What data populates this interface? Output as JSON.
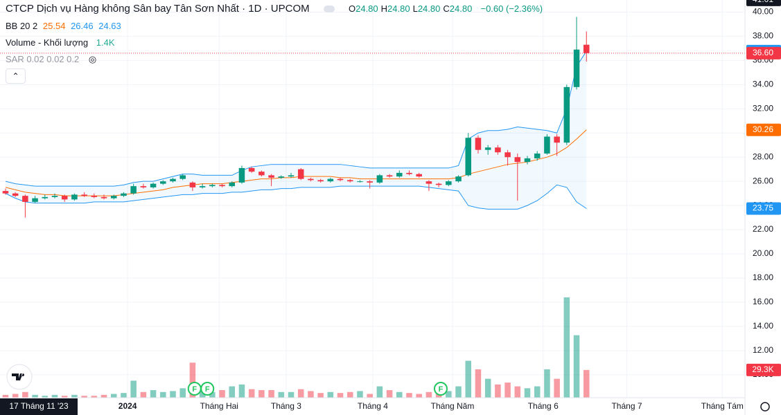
{
  "chart_data": {
    "type": "candlestick",
    "legend": {
      "title": "CTCP Dịch vụ Hàng không Sân bay Tân Sơn Nhất · 1D · UPCOM",
      "ohlc": [
        [
          "O",
          "24.80"
        ],
        [
          "H",
          "24.80"
        ],
        [
          "L",
          "24.80"
        ],
        [
          "C",
          "24.80"
        ]
      ],
      "change": "−0.60 (−2.36%)",
      "bb": {
        "name": "BB 20 2",
        "values": [
          "25.54",
          "26.46",
          "24.63"
        ]
      },
      "volume": {
        "name": "Volume - Khối lượng",
        "value": "1.4K"
      },
      "sar": "SAR 0.02 0.02 0.2"
    },
    "up_color": "#089981",
    "down_color": "#f23645",
    "candles": [
      [
        25.2,
        25.4,
        24.9,
        25.0
      ],
      [
        25.0,
        25.1,
        24.7,
        24.8
      ],
      [
        24.8,
        24.9,
        23.0,
        24.3
      ],
      [
        24.3,
        24.8,
        24.2,
        24.6
      ],
      [
        24.6,
        24.9,
        24.5,
        24.7
      ],
      [
        24.7,
        25.0,
        24.6,
        24.8
      ],
      [
        24.8,
        24.9,
        24.3,
        24.5
      ],
      [
        24.5,
        25.0,
        24.4,
        24.9
      ],
      [
        24.9,
        25.1,
        24.7,
        24.8
      ],
      [
        24.8,
        25.0,
        24.6,
        24.7
      ],
      [
        24.7,
        24.9,
        24.5,
        24.6
      ],
      [
        24.6,
        24.9,
        24.5,
        24.8
      ],
      [
        24.8,
        25.1,
        24.7,
        25.0
      ],
      [
        25.0,
        25.8,
        24.9,
        25.6
      ],
      [
        25.6,
        25.8,
        25.4,
        25.5
      ],
      [
        25.5,
        25.9,
        25.4,
        25.8
      ],
      [
        25.8,
        26.1,
        25.7,
        26.0
      ],
      [
        26.0,
        26.3,
        25.9,
        26.2
      ],
      [
        26.2,
        26.6,
        26.1,
        26.5
      ],
      [
        25.9,
        26.0,
        25.2,
        25.5
      ],
      [
        25.5,
        25.8,
        25.4,
        25.6
      ],
      [
        25.6,
        25.8,
        25.5,
        25.7
      ],
      [
        25.7,
        25.8,
        25.5,
        25.6
      ],
      [
        25.6,
        26.0,
        25.5,
        25.9
      ],
      [
        25.9,
        27.3,
        25.8,
        27.1
      ],
      [
        27.1,
        27.2,
        26.7,
        26.8
      ],
      [
        26.8,
        26.9,
        26.4,
        26.5
      ],
      [
        26.5,
        26.6,
        25.6,
        26.3
      ],
      [
        26.3,
        26.5,
        26.2,
        26.4
      ],
      [
        26.4,
        26.7,
        26.3,
        26.5
      ],
      [
        27.0,
        27.1,
        26.1,
        26.2
      ],
      [
        26.2,
        26.3,
        26.0,
        26.1
      ],
      [
        26.1,
        26.2,
        25.9,
        26.0
      ],
      [
        26.0,
        26.3,
        25.9,
        26.2
      ],
      [
        26.2,
        26.3,
        26.0,
        26.1
      ],
      [
        26.1,
        26.2,
        25.9,
        26.0
      ],
      [
        26.0,
        26.1,
        25.9,
        26.0
      ],
      [
        26.0,
        26.1,
        25.4,
        25.9
      ],
      [
        25.9,
        26.6,
        25.8,
        26.5
      ],
      [
        26.5,
        26.6,
        26.3,
        26.4
      ],
      [
        26.4,
        26.9,
        26.3,
        26.7
      ],
      [
        26.7,
        26.9,
        26.5,
        26.6
      ],
      [
        26.6,
        26.7,
        26.3,
        26.4
      ],
      [
        26.0,
        26.1,
        25.2,
        25.8
      ],
      [
        25.8,
        25.9,
        25.5,
        25.7
      ],
      [
        25.7,
        26.1,
        25.6,
        26.0
      ],
      [
        26.0,
        26.5,
        25.9,
        26.4
      ],
      [
        26.5,
        30.0,
        26.4,
        29.6
      ],
      [
        29.6,
        29.8,
        28.3,
        28.6
      ],
      [
        28.6,
        29.0,
        28.2,
        28.8
      ],
      [
        28.8,
        29.0,
        28.2,
        28.4
      ],
      [
        28.4,
        28.6,
        27.3,
        28.0
      ],
      [
        28.0,
        28.3,
        24.4,
        27.6
      ],
      [
        27.6,
        28.1,
        27.4,
        27.9
      ],
      [
        27.9,
        28.5,
        27.7,
        28.3
      ],
      [
        28.3,
        29.9,
        28.2,
        29.7
      ],
      [
        29.7,
        29.9,
        28.1,
        29.2
      ],
      [
        29.2,
        34.0,
        29.0,
        33.8
      ],
      [
        33.8,
        39.6,
        33.6,
        36.9
      ],
      [
        37.3,
        38.4,
        35.9,
        36.6
      ]
    ],
    "bb_upper": [
      26.0,
      25.8,
      25.7,
      25.6,
      25.6,
      25.6,
      25.6,
      25.6,
      25.6,
      25.6,
      25.6,
      25.6,
      25.7,
      25.9,
      26.0,
      26.0,
      26.2,
      26.4,
      26.6,
      26.6,
      26.5,
      26.5,
      26.5,
      26.5,
      26.9,
      27.2,
      27.3,
      27.4,
      27.4,
      27.4,
      27.4,
      27.4,
      27.4,
      27.4,
      27.4,
      27.3,
      27.2,
      27.1,
      27.1,
      27.1,
      27.1,
      27.1,
      27.1,
      27.1,
      27.1,
      27.1,
      27.3,
      29.5,
      30.0,
      30.2,
      30.2,
      30.3,
      30.5,
      30.4,
      30.3,
      30.2,
      30.0,
      32.0,
      35.5,
      36.77
    ],
    "bb_mid": [
      25.5,
      25.3,
      25.1,
      25.0,
      24.9,
      24.9,
      24.8,
      24.8,
      24.8,
      24.8,
      24.8,
      24.8,
      24.9,
      25.0,
      25.1,
      25.2,
      25.3,
      25.5,
      25.6,
      25.7,
      25.8,
      25.8,
      25.8,
      25.9,
      26.0,
      26.1,
      26.2,
      26.2,
      26.3,
      26.3,
      26.4,
      26.4,
      26.4,
      26.4,
      26.3,
      26.3,
      26.2,
      26.2,
      26.2,
      26.2,
      26.2,
      26.2,
      26.2,
      26.2,
      26.2,
      26.2,
      26.3,
      26.6,
      26.8,
      27.0,
      27.2,
      27.4,
      27.5,
      27.6,
      27.8,
      28.0,
      28.3,
      28.8,
      29.5,
      30.26
    ],
    "bb_lower": [
      25.0,
      24.6,
      24.3,
      24.2,
      24.2,
      24.2,
      24.2,
      24.2,
      24.2,
      24.3,
      24.3,
      24.3,
      24.3,
      24.4,
      24.5,
      24.6,
      24.7,
      24.8,
      24.9,
      24.9,
      25.0,
      25.0,
      25.0,
      25.1,
      25.1,
      25.2,
      25.3,
      25.3,
      25.4,
      25.4,
      25.5,
      25.5,
      25.5,
      25.5,
      25.6,
      25.6,
      25.6,
      25.6,
      25.6,
      25.6,
      25.6,
      25.6,
      25.6,
      25.5,
      25.4,
      25.3,
      25.2,
      24.0,
      23.8,
      23.7,
      23.7,
      23.7,
      23.7,
      24.0,
      24.4,
      25.0,
      25.7,
      25.5,
      24.3,
      23.75
    ],
    "bb_upper_color": "#2196f3",
    "bb_mid_color": "#ff6d00",
    "volume": [
      3,
      4,
      6,
      3,
      2,
      3,
      2,
      3,
      2,
      2,
      3,
      4,
      5,
      18,
      6,
      8,
      6,
      7,
      10,
      37,
      10,
      6,
      8,
      12,
      14,
      9,
      8,
      8,
      6,
      6,
      9,
      7,
      5,
      6,
      5,
      6,
      7,
      4,
      12,
      8,
      6,
      5,
      4,
      6,
      9,
      7,
      12,
      39,
      30,
      20,
      14,
      16,
      12,
      10,
      12,
      30,
      20,
      106,
      66,
      29.3
    ],
    "volume_lim": [
      0,
      420
    ],
    "volume_badge": {
      "value": 29.3,
      "label": "29.3K"
    },
    "xlim": [
      -0.56,
      75.1
    ],
    "xticks": [
      {
        "value": 12.4,
        "label": "2024"
      },
      {
        "value": 21.7,
        "label": "Tháng Hai"
      },
      {
        "value": 28.5,
        "label": "Tháng 3"
      },
      {
        "value": 37.3,
        "label": "Tháng 4"
      },
      {
        "value": 45.4,
        "label": "Tháng Năm"
      },
      {
        "value": 54.6,
        "label": "Tháng 6"
      },
      {
        "value": 63.1,
        "label": "Tháng 7"
      },
      {
        "value": 72.8,
        "label": "Tháng Tám"
      }
    ],
    "crosshair_label": "17 Tháng 11 '23",
    "events": [
      {
        "value": 19.2,
        "label": "F"
      },
      {
        "value": 20.5,
        "label": "F"
      },
      {
        "value": 44.2,
        "label": "F"
      }
    ],
    "ylim": [
      8.1,
      41.0
    ],
    "yticks": [
      {
        "value": 10,
        "label": "10.00"
      },
      {
        "value": 12,
        "label": "12.00"
      },
      {
        "value": 14,
        "label": "14.00"
      },
      {
        "value": 16,
        "label": "16.00"
      },
      {
        "value": 18,
        "label": "18.00"
      },
      {
        "value": 20,
        "label": "20.00"
      },
      {
        "value": 22,
        "label": "22.00"
      },
      {
        "value": 24,
        "label": "24.00"
      },
      {
        "value": 26,
        "label": "26.00"
      },
      {
        "value": 28,
        "label": "28.00"
      },
      {
        "value": 30,
        "label": "30.00"
      },
      {
        "value": 32,
        "label": "32.00"
      },
      {
        "value": 34,
        "label": "34.00"
      },
      {
        "value": 36,
        "label": "36.00"
      },
      {
        "value": 38,
        "label": "38.00"
      },
      {
        "value": 40,
        "label": "40.00"
      }
    ],
    "badges": [
      {
        "value": 41.01,
        "label": "41.01",
        "color": "#131722"
      },
      {
        "value": 36.77,
        "label": "36.77",
        "color": "#2196f3"
      },
      {
        "value": 36.6,
        "label": "36.60",
        "color": "#f23645"
      },
      {
        "value": 30.26,
        "label": "30.26",
        "color": "#ff6d00"
      },
      {
        "value": 23.75,
        "label": "23.75",
        "color": "#2196f3"
      }
    ],
    "last_price": 36.6,
    "grid": true
  }
}
